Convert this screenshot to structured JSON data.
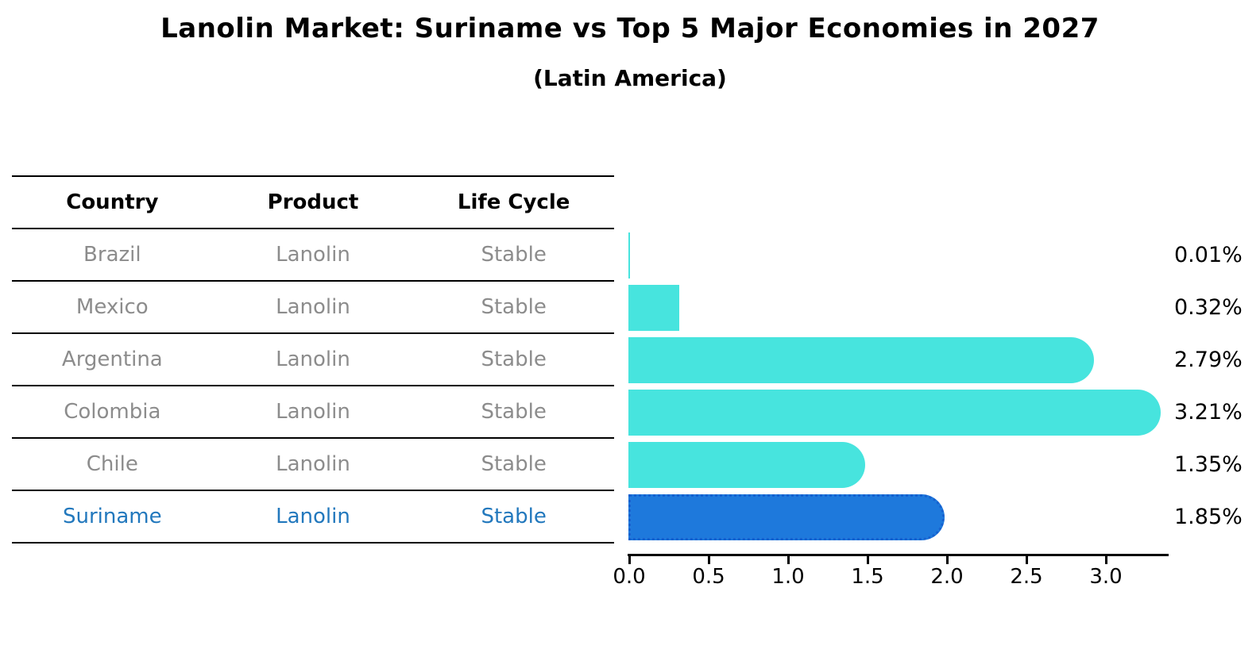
{
  "title": "Lanolin Market: Suriname vs Top 5 Major Economies in 2027",
  "subtitle": "(Latin America)",
  "table": {
    "columns": [
      "Country",
      "Product",
      "Life Cycle"
    ],
    "rows": [
      {
        "country": "Brazil",
        "product": "Lanolin",
        "life_cycle": "Stable",
        "highlight": false
      },
      {
        "country": "Mexico",
        "product": "Lanolin",
        "life_cycle": "Stable",
        "highlight": false
      },
      {
        "country": "Argentina",
        "product": "Lanolin",
        "life_cycle": "Stable",
        "highlight": false
      },
      {
        "country": "Colombia",
        "product": "Lanolin",
        "life_cycle": "Stable",
        "highlight": false
      },
      {
        "country": "Chile",
        "product": "Lanolin",
        "life_cycle": "Stable",
        "highlight": true
      }
    ]
  },
  "chart_data": {
    "type": "bar",
    "orientation": "horizontal",
    "categories": [
      "Brazil",
      "Mexico",
      "Argentina",
      "Colombia",
      "Chile",
      "Suriname"
    ],
    "values": [
      0.01,
      0.32,
      2.79,
      3.21,
      1.35,
      1.85
    ],
    "labels": [
      "0.01%",
      "0.32%",
      "2.79%",
      "3.21%",
      "1.35%",
      "1.85%"
    ],
    "x_ticks": [
      "0.0",
      "0.5",
      "1.0",
      "1.5",
      "2.0",
      "2.5",
      "3.0"
    ],
    "xlim": [
      0.0,
      3.4
    ],
    "grid": false,
    "legend": "none",
    "bar_color": "#47e4de",
    "highlight_color": "#1e79dc",
    "highlight_border_color": "#1560cf",
    "highlight_index": 5,
    "highlight_category": "Suriname"
  }
}
